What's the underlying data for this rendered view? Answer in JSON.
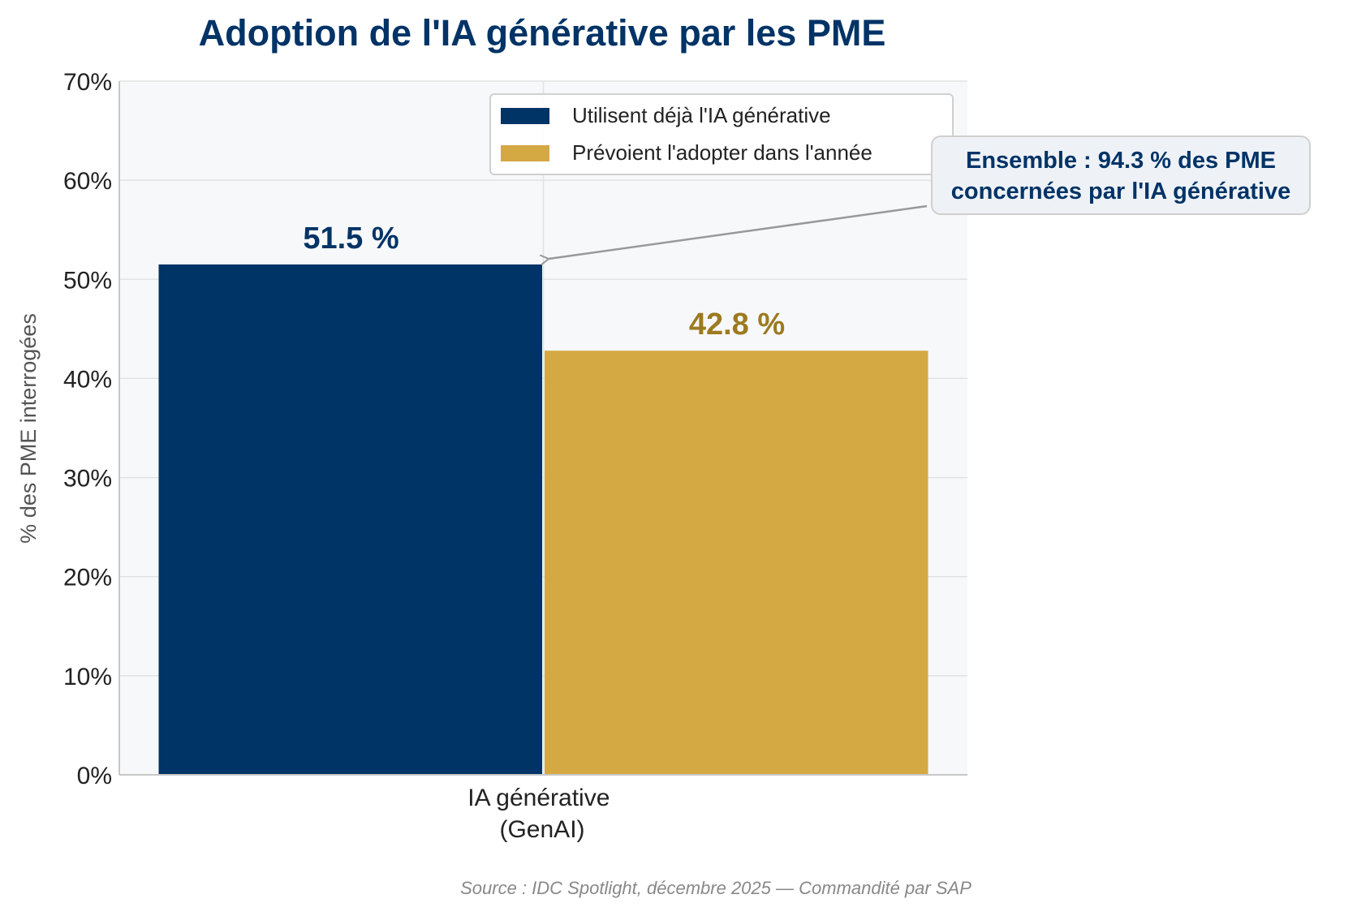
{
  "chart_data": {
    "type": "bar",
    "title": "Adoption de l'IA générative par les PME",
    "categories": [
      "IA générative\n(GenAI)"
    ],
    "category_lines": [
      "IA générative",
      "(GenAI)"
    ],
    "ylabel": "% des PME interrogées",
    "ylim": [
      0,
      70
    ],
    "yticks": [
      "0%",
      "10%",
      "20%",
      "30%",
      "40%",
      "50%",
      "60%",
      "70%"
    ],
    "grid": true,
    "legend_position": "top-right",
    "series": [
      {
        "name": "Utilisent déjà l'IA générative",
        "values": [
          51.5
        ],
        "color": "#003366",
        "label": "51.5 %",
        "label_color": "#003366"
      },
      {
        "name": "Prévoient l'adopter dans l'année",
        "values": [
          42.8
        ],
        "color": "#D4A843",
        "label": "42.8 %",
        "label_color": "#9C7A20"
      }
    ],
    "annotation": {
      "line1": "Ensemble : 94.3 % des PME",
      "line2": "concernées par l'IA générative"
    },
    "source": "Source : IDC Spotlight, décembre 2025 — Commandité par SAP"
  }
}
